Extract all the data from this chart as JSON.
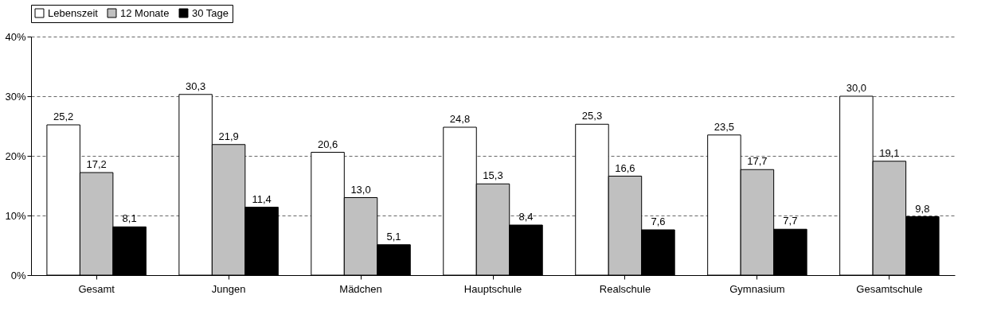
{
  "chart_data": {
    "type": "bar",
    "categories": [
      "Gesamt",
      "Jungen",
      "Mädchen",
      "Hauptschule",
      "Realschule",
      "Gymnasium",
      "Gesamtschule"
    ],
    "series": [
      {
        "name": "Lebenszeit",
        "color": "#ffffff",
        "values": [
          25.2,
          30.3,
          20.6,
          24.8,
          25.3,
          23.5,
          30.0
        ],
        "value_labels": [
          "25,2",
          "30,3",
          "20,6",
          "24,8",
          "25,3",
          "23,5",
          "30,0"
        ]
      },
      {
        "name": "12 Monate",
        "color": "#c0c0c0",
        "values": [
          17.2,
          21.9,
          13.0,
          15.3,
          16.6,
          17.7,
          19.1
        ],
        "value_labels": [
          "17,2",
          "21,9",
          "13,0",
          "15,3",
          "16,6",
          "17,7",
          "19,1"
        ]
      },
      {
        "name": "30 Tage",
        "color": "#000000",
        "values": [
          8.1,
          11.4,
          5.1,
          8.4,
          7.6,
          7.7,
          9.8
        ],
        "value_labels": [
          "8,1",
          "11,4",
          "5,1",
          "8,4",
          "7,6",
          "7,7",
          "9,8"
        ]
      }
    ],
    "ylim": [
      0,
      40
    ],
    "yticks": [
      {
        "value": 0,
        "label": "0%"
      },
      {
        "value": 10,
        "label": "10%"
      },
      {
        "value": 20,
        "label": "20%"
      },
      {
        "value": 30,
        "label": "30%"
      },
      {
        "value": 40,
        "label": "40%"
      }
    ],
    "grid": "y",
    "legend": "top"
  }
}
